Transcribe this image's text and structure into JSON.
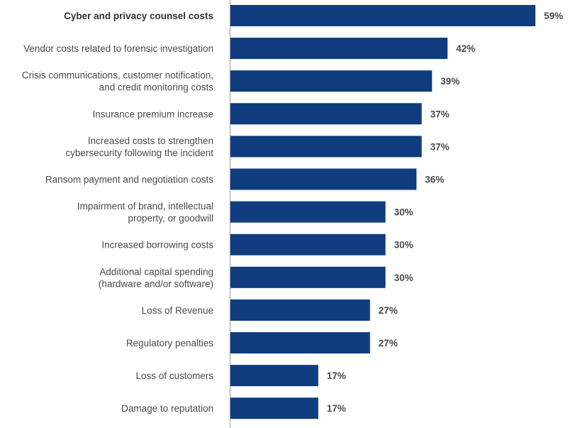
{
  "chart_data": {
    "type": "bar",
    "orientation": "horizontal",
    "title": "",
    "xlabel": "",
    "ylabel": "",
    "value_suffix": "%",
    "xlim": [
      0,
      80
    ],
    "grid": false,
    "legend": "none",
    "bar_color": "#0f3d7f",
    "axis_color": "#999999",
    "highlight_index": 0,
    "categories": [
      [
        "Cyber and privacy counsel costs"
      ],
      [
        "Vendor costs related to forensic investigation"
      ],
      [
        "Crisis communications, customer notification,",
        "and credit monitoring costs"
      ],
      [
        "Insurance premium increase"
      ],
      [
        "Increased costs to strengthen",
        "cybersecurity following the incident"
      ],
      [
        "Ransom payment and negotiation costs"
      ],
      [
        "Impairment of brand, intellectual",
        "property, or goodwill"
      ],
      [
        "Increased borrowing costs"
      ],
      [
        "Additional capital spending",
        "(hardware and/or software)"
      ],
      [
        "Loss of Revenue"
      ],
      [
        "Regulatory penalties"
      ],
      [
        "Loss of customers"
      ],
      [
        "Damage to reputation"
      ]
    ],
    "values": [
      59,
      42,
      39,
      37,
      37,
      36,
      30,
      30,
      30,
      27,
      27,
      17,
      17
    ]
  }
}
